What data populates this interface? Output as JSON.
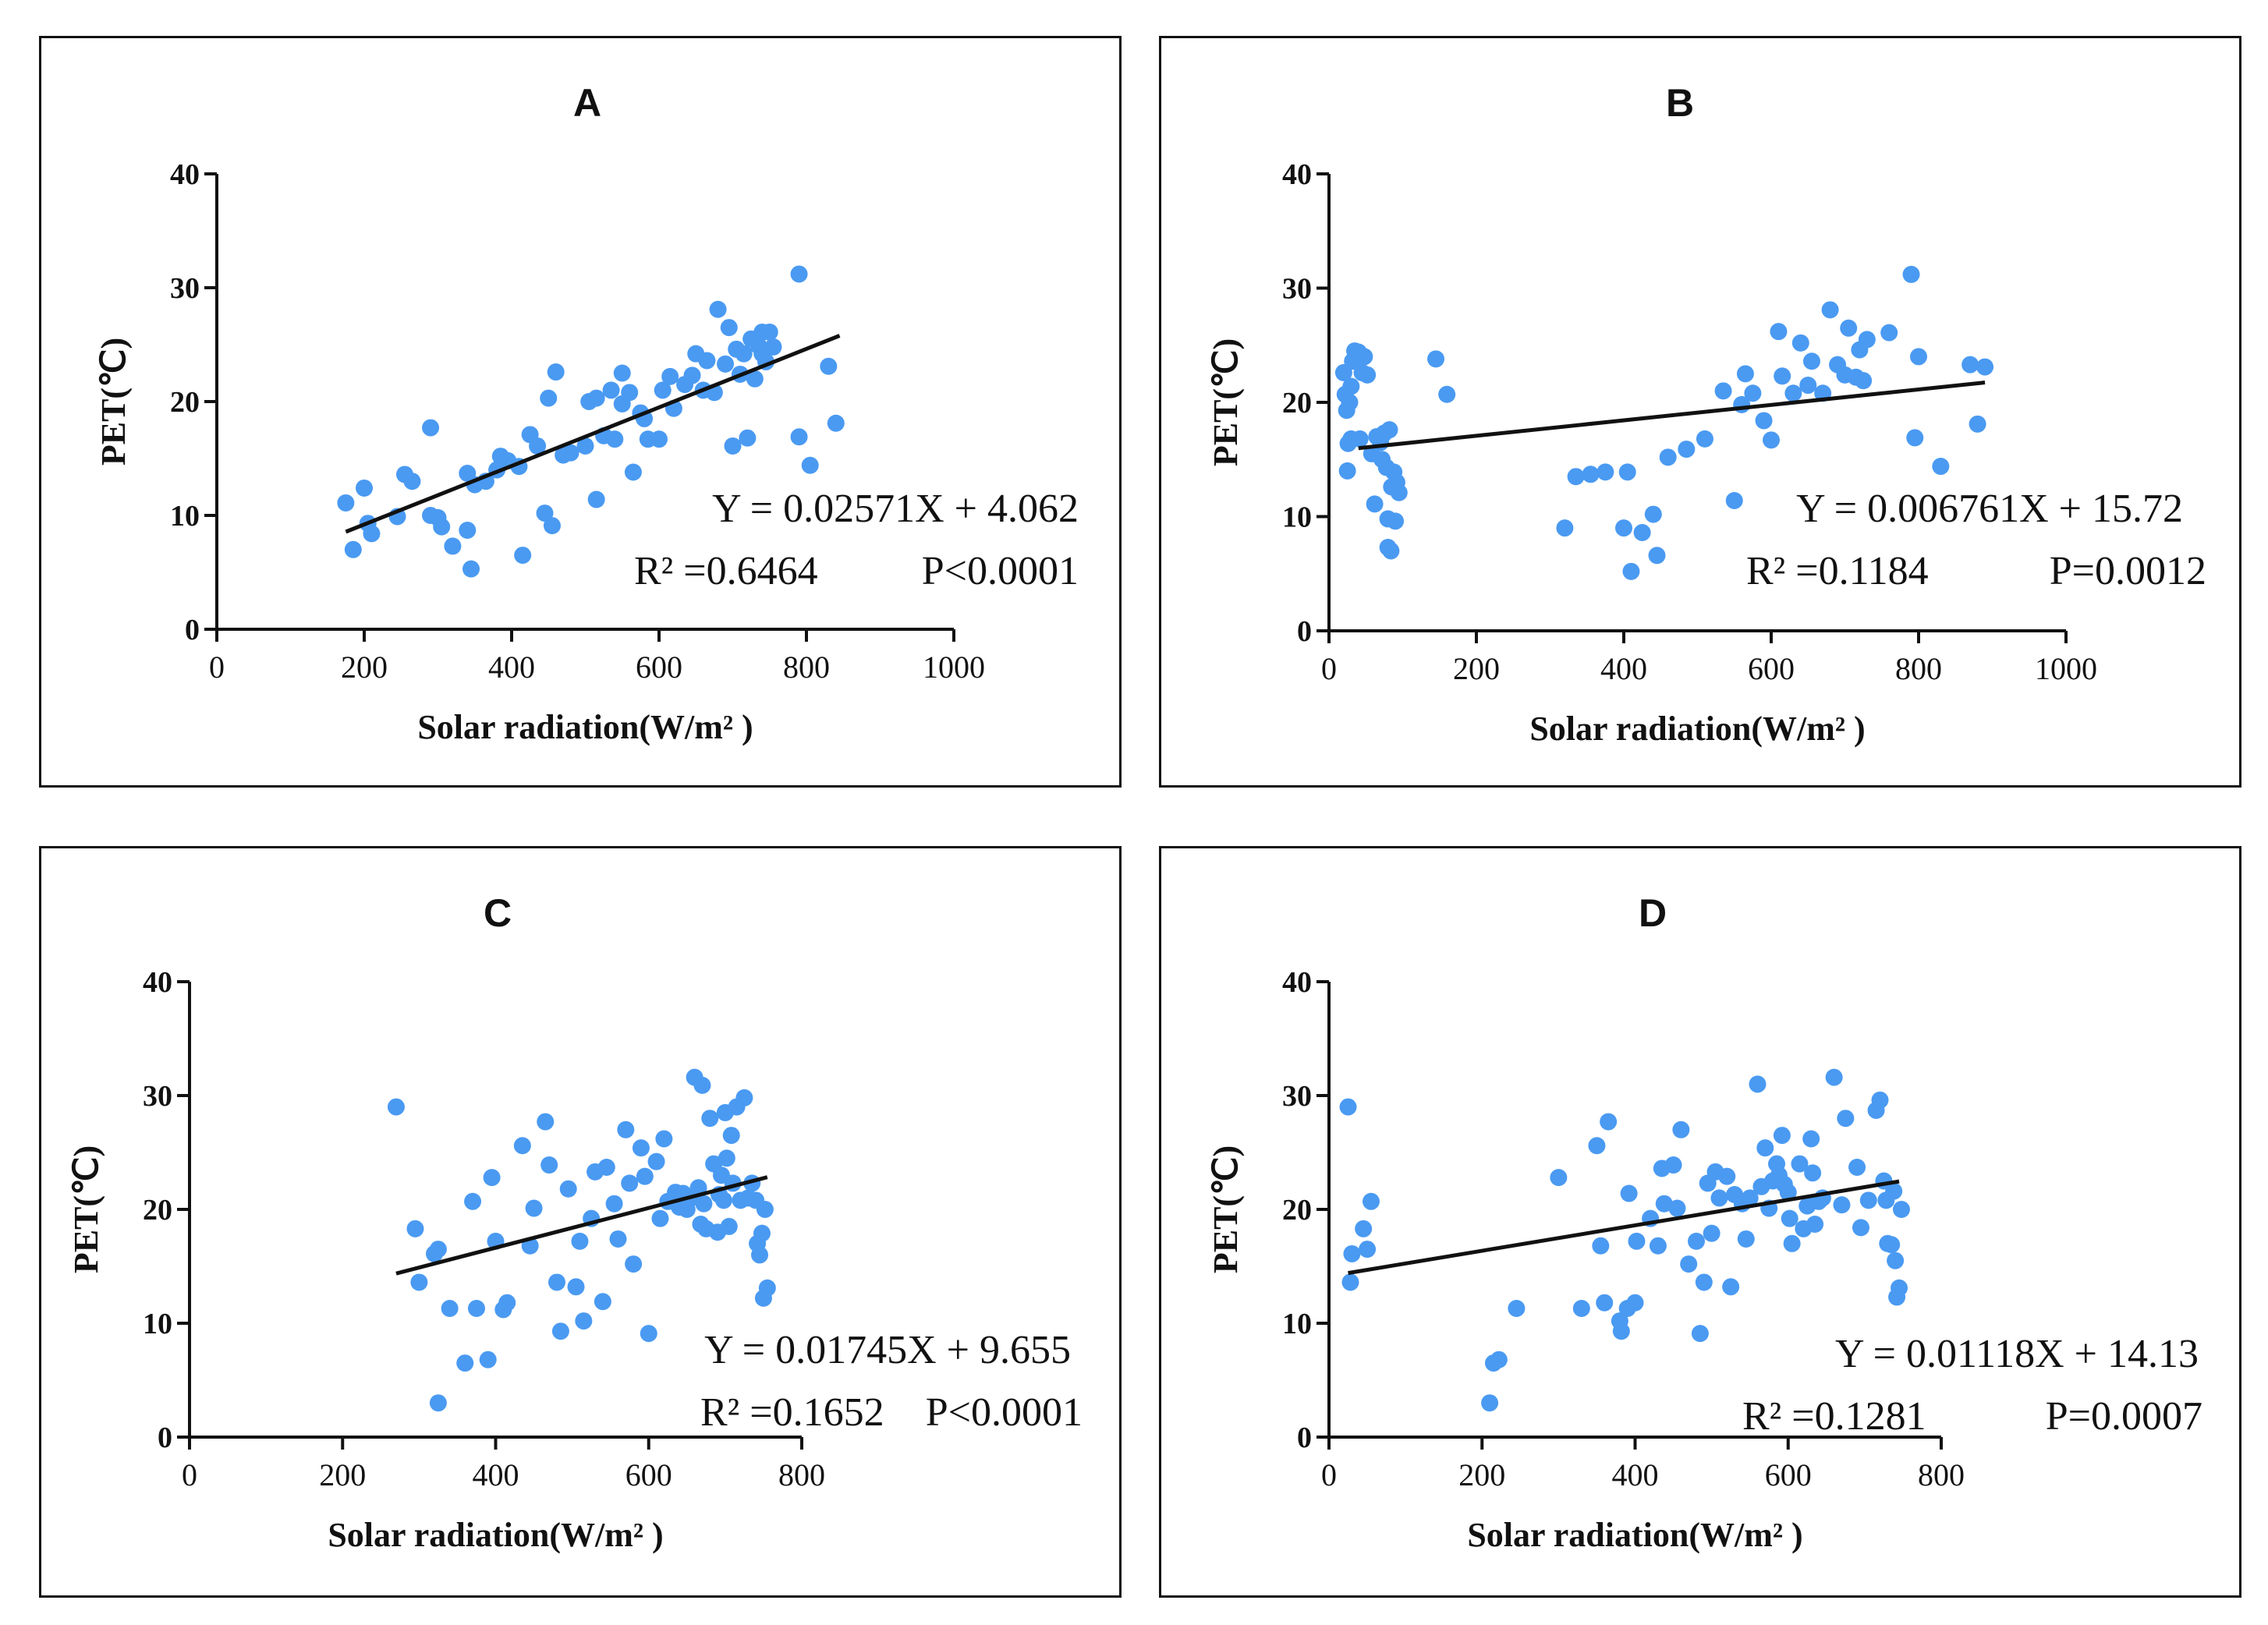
{
  "colors": {
    "points": "#4a9af2",
    "line": "#111111",
    "axis": "#111111"
  },
  "chart_data": [
    {
      "type": "scatter",
      "title": "A",
      "xlabel": "Solar radiation(W/m² )",
      "ylabel": "PET(℃)",
      "xlim": [
        0,
        1000
      ],
      "ylim": [
        0,
        40
      ],
      "xticks": [
        0,
        200,
        400,
        600,
        800,
        1000
      ],
      "yticks": [
        0,
        10,
        20,
        30,
        40
      ],
      "equation": "Y = 0.02571X + 4.062",
      "r2": "R² =0.6464",
      "p": "P<0.0001",
      "fit": {
        "slope": 0.02571,
        "intercept": 4.062,
        "x_range": [
          175,
          845
        ]
      },
      "points": [
        [
          175,
          11.1
        ],
        [
          185,
          7.0
        ],
        [
          200,
          12.4
        ],
        [
          205,
          9.3
        ],
        [
          210,
          8.4
        ],
        [
          245,
          9.9
        ],
        [
          255,
          13.6
        ],
        [
          265,
          13.0
        ],
        [
          290,
          17.7
        ],
        [
          290,
          10.0
        ],
        [
          300,
          9.8
        ],
        [
          305,
          9.0
        ],
        [
          320,
          7.3
        ],
        [
          340,
          13.7
        ],
        [
          340,
          8.7
        ],
        [
          345,
          5.3
        ],
        [
          350,
          12.7
        ],
        [
          365,
          13.0
        ],
        [
          380,
          14.0
        ],
        [
          385,
          15.2
        ],
        [
          395,
          14.8
        ],
        [
          410,
          14.3
        ],
        [
          415,
          6.5
        ],
        [
          425,
          17.1
        ],
        [
          435,
          16.1
        ],
        [
          445,
          10.2
        ],
        [
          450,
          20.3
        ],
        [
          455,
          9.1
        ],
        [
          460,
          22.6
        ],
        [
          470,
          15.3
        ],
        [
          480,
          15.5
        ],
        [
          500,
          16.1
        ],
        [
          505,
          20.0
        ],
        [
          515,
          11.4
        ],
        [
          515,
          20.3
        ],
        [
          525,
          17.0
        ],
        [
          535,
          21.0
        ],
        [
          540,
          16.7
        ],
        [
          550,
          19.8
        ],
        [
          550,
          22.5
        ],
        [
          560,
          20.8
        ],
        [
          565,
          13.8
        ],
        [
          575,
          19.0
        ],
        [
          580,
          18.5
        ],
        [
          585,
          16.7
        ],
        [
          600,
          16.7
        ],
        [
          605,
          21.0
        ],
        [
          615,
          22.2
        ],
        [
          620,
          19.4
        ],
        [
          635,
          21.5
        ],
        [
          645,
          22.3
        ],
        [
          650,
          24.2
        ],
        [
          660,
          21.0
        ],
        [
          665,
          23.6
        ],
        [
          675,
          20.8
        ],
        [
          680,
          28.1
        ],
        [
          690,
          23.3
        ],
        [
          695,
          26.5
        ],
        [
          700,
          16.1
        ],
        [
          705,
          24.6
        ],
        [
          710,
          22.4
        ],
        [
          715,
          24.2
        ],
        [
          720,
          16.8
        ],
        [
          725,
          25.5
        ],
        [
          730,
          22.0
        ],
        [
          735,
          24.9
        ],
        [
          740,
          26.1
        ],
        [
          740,
          24.2
        ],
        [
          745,
          23.5
        ],
        [
          750,
          26.1
        ],
        [
          755,
          24.8
        ],
        [
          790,
          31.2
        ],
        [
          790,
          16.9
        ],
        [
          805,
          14.4
        ],
        [
          830,
          23.1
        ],
        [
          840,
          18.1
        ]
      ]
    },
    {
      "type": "scatter",
      "title": "B",
      "xlabel": "Solar radiation(W/m² )",
      "ylabel": "PET(℃)",
      "xlim": [
        0,
        1000
      ],
      "ylim": [
        0,
        40
      ],
      "xticks": [
        0,
        200,
        400,
        600,
        800,
        1000
      ],
      "yticks": [
        0,
        10,
        20,
        30,
        40
      ],
      "equation": "Y = 0.006761X + 15.72",
      "r2": "R² =0.1184",
      "p": "P=0.0012",
      "fit": {
        "slope": 0.006761,
        "intercept": 15.72,
        "x_range": [
          40,
          890
        ]
      },
      "points": [
        [
          20,
          22.6
        ],
        [
          22,
          20.7
        ],
        [
          24,
          19.3
        ],
        [
          25,
          14.0
        ],
        [
          26,
          16.4
        ],
        [
          28,
          20.0
        ],
        [
          30,
          16.8
        ],
        [
          30,
          21.4
        ],
        [
          32,
          23.6
        ],
        [
          35,
          24.5
        ],
        [
          38,
          24.0
        ],
        [
          40,
          24.4
        ],
        [
          42,
          16.8
        ],
        [
          45,
          22.6
        ],
        [
          48,
          24.0
        ],
        [
          52,
          22.4
        ],
        [
          58,
          15.5
        ],
        [
          62,
          11.1
        ],
        [
          65,
          17.0
        ],
        [
          70,
          16.5
        ],
        [
          72,
          15.0
        ],
        [
          75,
          17.3
        ],
        [
          78,
          14.3
        ],
        [
          80,
          9.8
        ],
        [
          80,
          7.3
        ],
        [
          82,
          17.6
        ],
        [
          84,
          7.0
        ],
        [
          85,
          12.6
        ],
        [
          88,
          13.9
        ],
        [
          90,
          9.6
        ],
        [
          92,
          13.0
        ],
        [
          95,
          12.1
        ],
        [
          145,
          23.8
        ],
        [
          160,
          20.7
        ],
        [
          320,
          9.0
        ],
        [
          335,
          13.5
        ],
        [
          355,
          13.7
        ],
        [
          375,
          13.9
        ],
        [
          400,
          9.0
        ],
        [
          405,
          13.9
        ],
        [
          410,
          5.2
        ],
        [
          425,
          8.6
        ],
        [
          440,
          10.2
        ],
        [
          445,
          6.6
        ],
        [
          460,
          15.2
        ],
        [
          485,
          15.9
        ],
        [
          510,
          16.8
        ],
        [
          535,
          21.0
        ],
        [
          550,
          11.4
        ],
        [
          560,
          19.8
        ],
        [
          565,
          22.5
        ],
        [
          575,
          20.8
        ],
        [
          590,
          18.4
        ],
        [
          600,
          16.7
        ],
        [
          610,
          26.2
        ],
        [
          615,
          22.3
        ],
        [
          630,
          20.8
        ],
        [
          640,
          25.2
        ],
        [
          650,
          21.5
        ],
        [
          655,
          23.6
        ],
        [
          670,
          20.8
        ],
        [
          680,
          28.1
        ],
        [
          690,
          23.3
        ],
        [
          700,
          22.4
        ],
        [
          705,
          26.5
        ],
        [
          715,
          22.2
        ],
        [
          720,
          24.6
        ],
        [
          725,
          21.9
        ],
        [
          730,
          25.5
        ],
        [
          760,
          26.1
        ],
        [
          790,
          31.2
        ],
        [
          795,
          16.9
        ],
        [
          800,
          24.0
        ],
        [
          830,
          14.4
        ],
        [
          870,
          23.3
        ],
        [
          880,
          18.1
        ],
        [
          890,
          23.1
        ]
      ]
    },
    {
      "type": "scatter",
      "title": "C",
      "xlabel": "Solar radiation(W/m² )",
      "ylabel": "PET(℃)",
      "xlim": [
        0,
        800
      ],
      "ylim": [
        0,
        40
      ],
      "xticks": [
        0,
        200,
        400,
        600,
        800
      ],
      "yticks": [
        0,
        10,
        20,
        30,
        40
      ],
      "equation": "Y = 0.01745X + 9.655",
      "r2": "R² =0.1652",
      "p": "P<0.0001",
      "fit": {
        "slope": 0.01745,
        "intercept": 9.655,
        "x_range": [
          270,
          755
        ]
      },
      "points": [
        [
          270,
          29.0
        ],
        [
          295,
          18.3
        ],
        [
          300,
          13.6
        ],
        [
          320,
          16.1
        ],
        [
          325,
          3.0
        ],
        [
          325,
          16.5
        ],
        [
          340,
          11.3
        ],
        [
          360,
          6.5
        ],
        [
          370,
          20.7
        ],
        [
          375,
          11.3
        ],
        [
          390,
          6.8
        ],
        [
          395,
          22.8
        ],
        [
          400,
          17.2
        ],
        [
          410,
          11.2
        ],
        [
          415,
          11.8
        ],
        [
          435,
          25.6
        ],
        [
          445,
          16.8
        ],
        [
          450,
          20.1
        ],
        [
          465,
          27.7
        ],
        [
          470,
          23.9
        ],
        [
          480,
          13.6
        ],
        [
          485,
          9.3
        ],
        [
          495,
          21.8
        ],
        [
          505,
          13.2
        ],
        [
          510,
          17.2
        ],
        [
          515,
          10.2
        ],
        [
          525,
          19.2
        ],
        [
          530,
          23.3
        ],
        [
          540,
          11.9
        ],
        [
          545,
          23.7
        ],
        [
          555,
          20.5
        ],
        [
          560,
          17.4
        ],
        [
          570,
          27.0
        ],
        [
          575,
          22.3
        ],
        [
          580,
          15.2
        ],
        [
          590,
          25.4
        ],
        [
          595,
          22.9
        ],
        [
          600,
          9.1
        ],
        [
          610,
          24.2
        ],
        [
          615,
          19.2
        ],
        [
          620,
          26.2
        ],
        [
          625,
          20.7
        ],
        [
          635,
          21.5
        ],
        [
          640,
          20.2
        ],
        [
          645,
          21.4
        ],
        [
          650,
          20.0
        ],
        [
          655,
          21.0
        ],
        [
          660,
          31.6
        ],
        [
          665,
          21.9
        ],
        [
          668,
          18.7
        ],
        [
          670,
          30.9
        ],
        [
          672,
          20.5
        ],
        [
          675,
          18.3
        ],
        [
          680,
          28.0
        ],
        [
          685,
          24.0
        ],
        [
          690,
          18.0
        ],
        [
          692,
          21.3
        ],
        [
          695,
          23.0
        ],
        [
          698,
          20.8
        ],
        [
          700,
          28.5
        ],
        [
          702,
          24.5
        ],
        [
          705,
          18.5
        ],
        [
          708,
          26.5
        ],
        [
          710,
          22.3
        ],
        [
          715,
          29.0
        ],
        [
          720,
          20.8
        ],
        [
          725,
          29.8
        ],
        [
          730,
          21.0
        ],
        [
          735,
          22.3
        ],
        [
          740,
          20.8
        ],
        [
          742,
          17.0
        ],
        [
          745,
          16.0
        ],
        [
          748,
          17.9
        ],
        [
          750,
          12.2
        ],
        [
          752,
          20.0
        ],
        [
          755,
          13.1
        ]
      ]
    },
    {
      "type": "scatter",
      "title": "D",
      "xlabel": "Solar radiation(W/m² )",
      "ylabel": "PET(℃)",
      "xlim": [
        0,
        800
      ],
      "ylim": [
        0,
        40
      ],
      "xticks": [
        0,
        200,
        400,
        600,
        800
      ],
      "yticks": [
        0,
        10,
        20,
        30,
        40
      ],
      "equation": "Y = 0.01118X + 14.13",
      "r2": "R² =0.1281",
      "p": "P=0.0007",
      "fit": {
        "slope": 0.01118,
        "intercept": 14.13,
        "x_range": [
          25,
          745
        ]
      },
      "points": [
        [
          25,
          29.0
        ],
        [
          28,
          13.6
        ],
        [
          30,
          16.1
        ],
        [
          45,
          18.3
        ],
        [
          50,
          16.5
        ],
        [
          55,
          20.7
        ],
        [
          210,
          3.0
        ],
        [
          215,
          6.5
        ],
        [
          222,
          6.8
        ],
        [
          245,
          11.3
        ],
        [
          300,
          22.8
        ],
        [
          330,
          11.3
        ],
        [
          350,
          25.6
        ],
        [
          355,
          16.8
        ],
        [
          360,
          11.8
        ],
        [
          365,
          27.7
        ],
        [
          380,
          10.2
        ],
        [
          382,
          9.3
        ],
        [
          390,
          11.3
        ],
        [
          392,
          21.4
        ],
        [
          400,
          11.8
        ],
        [
          402,
          17.2
        ],
        [
          420,
          19.2
        ],
        [
          430,
          16.8
        ],
        [
          435,
          23.6
        ],
        [
          438,
          20.5
        ],
        [
          450,
          23.9
        ],
        [
          455,
          20.1
        ],
        [
          460,
          27.0
        ],
        [
          470,
          15.2
        ],
        [
          480,
          17.2
        ],
        [
          485,
          9.1
        ],
        [
          490,
          13.6
        ],
        [
          495,
          22.3
        ],
        [
          500,
          17.9
        ],
        [
          505,
          23.3
        ],
        [
          510,
          21.0
        ],
        [
          520,
          22.9
        ],
        [
          525,
          13.2
        ],
        [
          530,
          21.3
        ],
        [
          540,
          20.5
        ],
        [
          545,
          17.4
        ],
        [
          550,
          21.0
        ],
        [
          560,
          31.0
        ],
        [
          565,
          22.0
        ],
        [
          570,
          25.4
        ],
        [
          575,
          20.1
        ],
        [
          580,
          22.5
        ],
        [
          585,
          24.0
        ],
        [
          588,
          23.0
        ],
        [
          592,
          26.5
        ],
        [
          595,
          22.2
        ],
        [
          600,
          21.5
        ],
        [
          602,
          19.2
        ],
        [
          605,
          17.0
        ],
        [
          615,
          24.0
        ],
        [
          620,
          18.3
        ],
        [
          625,
          20.3
        ],
        [
          630,
          26.2
        ],
        [
          632,
          23.2
        ],
        [
          635,
          18.7
        ],
        [
          640,
          20.7
        ],
        [
          645,
          21.0
        ],
        [
          660,
          31.6
        ],
        [
          670,
          20.4
        ],
        [
          675,
          28.0
        ],
        [
          690,
          23.7
        ],
        [
          695,
          18.4
        ],
        [
          705,
          20.8
        ],
        [
          715,
          28.7
        ],
        [
          720,
          29.6
        ],
        [
          725,
          22.5
        ],
        [
          728,
          20.8
        ],
        [
          730,
          17.0
        ],
        [
          735,
          16.9
        ],
        [
          738,
          21.6
        ],
        [
          740,
          15.5
        ],
        [
          742,
          12.3
        ],
        [
          745,
          13.1
        ],
        [
          748,
          20.0
        ]
      ]
    }
  ]
}
